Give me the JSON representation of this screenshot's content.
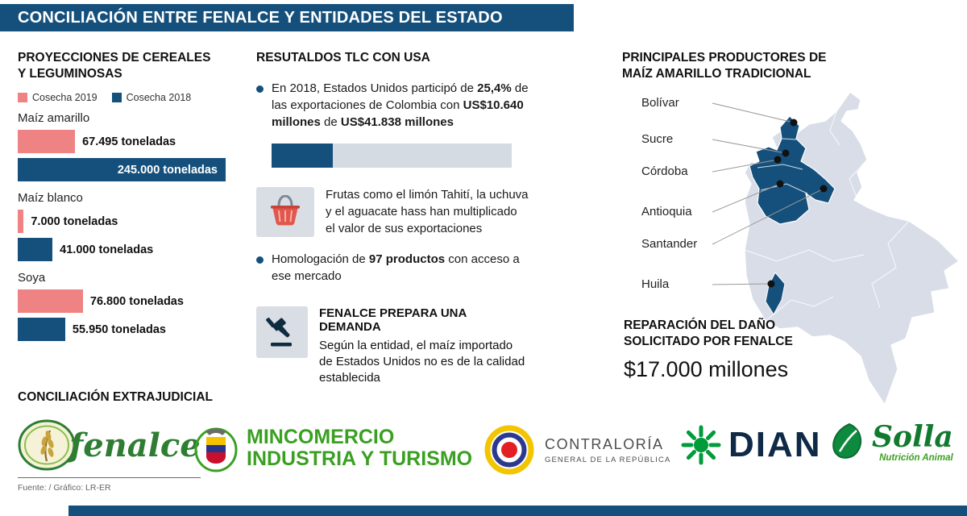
{
  "header": {
    "title": "CONCILIACIÓN ENTRE FENALCE Y ENTIDADES DEL ESTADO"
  },
  "colors": {
    "navy": "#15507c",
    "pink": "#ef8282",
    "track": "#d5dbe3",
    "map_gray": "#d8dde7",
    "green": "#3aa021"
  },
  "projections": {
    "title": "PROYECCIONES DE CEREALES Y LEGUMINOSAS"
  },
  "chart_data": {
    "type": "bar",
    "orientation": "horizontal",
    "title": "Proyecciones de cereales y leguminosas",
    "categories": [
      "Maíz amarillo",
      "Maíz blanco",
      "Soya"
    ],
    "series": [
      {
        "name": "Cosecha 2019",
        "color": "#ef8282",
        "values": [
          67495,
          7000,
          76800
        ],
        "labels": [
          "67.495 toneladas",
          "7.000 toneladas",
          "76.800 toneladas"
        ]
      },
      {
        "name": "Cosecha 2018",
        "color": "#15507c",
        "values": [
          245000,
          41000,
          55950
        ],
        "labels": [
          "245.000 toneladas",
          "41.000 toneladas",
          "55.950 toneladas"
        ]
      }
    ],
    "max_value": 245000,
    "unit": "toneladas",
    "legend_position": "top"
  },
  "tlc": {
    "title": "RESUTALDOS TLC CON USA",
    "bullet1": {
      "pre": "En 2018, Estados Unidos participó de ",
      "bold1": "25,4%",
      "mid": " de las exportaciones de Colombia con ",
      "bold2": "US$10.640 millones",
      "post": " de ",
      "bold3": "US$41.838 millones"
    },
    "progress": {
      "percent": 25.4,
      "value": "US$10.640 millones",
      "total": "US$41.838 millones"
    },
    "bullet2": "Frutas como el limón Tahití, la uchuva y el aguacate hass han multiplicado el valor de sus exportaciones",
    "bullet3": {
      "pre": "Homologación de ",
      "bold": "97 productos",
      "post": " con acceso a ese mercado"
    },
    "demand": {
      "title": "FENALCE PREPARA UNA DEMANDA",
      "text": "Según la entidad, el maíz importado de Estados Unidos no es de la calidad establecida"
    }
  },
  "map": {
    "title": "PRINCIPALES PRODUCTORES DE MAÍZ AMARILLO TRADICIONAL",
    "labels": [
      "Bolívar",
      "Sucre",
      "Córdoba",
      "Antioquia",
      "Santander",
      "Huila"
    ],
    "reparation": {
      "line1": "REPARACIÓN DEL DAÑO",
      "line2": "SOLICITADO POR FENALCE",
      "amount": "$17.000 millones"
    }
  },
  "bottom": {
    "title": "CONCILIACIÓN EXTRAJUDICIAL",
    "logos": {
      "fenalce": "fenalce",
      "mincomercio_line1": "MINCOMERCIO",
      "mincomercio_line2": "INDUSTRIA Y TURISMO",
      "contraloria_line1": "CONTRALORÍA",
      "contraloria_line2": "GENERAL DE LA REPÚBLICA",
      "dian": "DIAN",
      "solla": "Solla",
      "solla_sub": "Nutrición Animal"
    },
    "source": "Fuente: / Gráfico: LR-ER"
  }
}
